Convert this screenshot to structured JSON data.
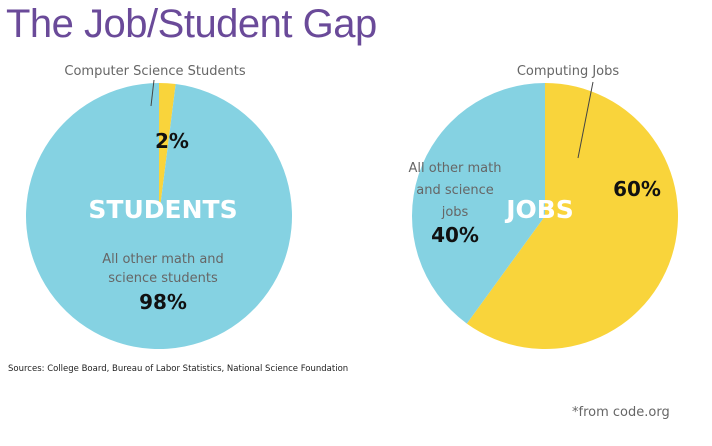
{
  "title": "The Job/Student Gap",
  "sources": "Sources: College Board, Bureau of Labor Statistics, National Science Foundation",
  "credit": "*from code.org",
  "colors": {
    "yellow": "#f9d43b",
    "blue": "#85d2e2",
    "title": "#6a4a99"
  },
  "chart_data": [
    {
      "type": "pie",
      "center_label": "STUDENTS",
      "slices": [
        {
          "label": "Computer Science Students",
          "value": 2,
          "value_label": "2%",
          "color": "#f9d43b"
        },
        {
          "label_lines": [
            "All other math and",
            "science students"
          ],
          "value": 98,
          "value_label": "98%",
          "color": "#85d2e2"
        }
      ]
    },
    {
      "type": "pie",
      "center_label": "JOBS",
      "slices": [
        {
          "label": "Computing Jobs",
          "value": 60,
          "value_label": "60%",
          "color": "#f9d43b"
        },
        {
          "label_lines": [
            "All other math",
            "and science",
            "jobs"
          ],
          "value": 40,
          "value_label": "40%",
          "color": "#85d2e2"
        }
      ]
    }
  ]
}
